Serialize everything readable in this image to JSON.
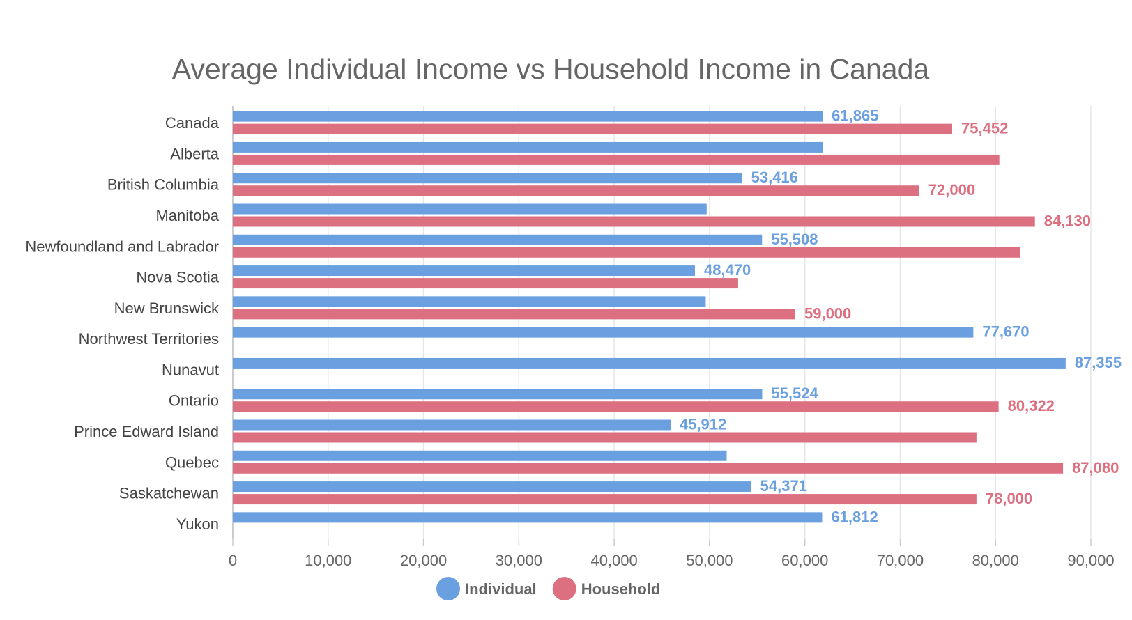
{
  "chart_data": {
    "type": "bar",
    "orientation": "horizontal",
    "title": "Average Individual Income vs Household Income in Canada",
    "categories": [
      "Canada",
      "Alberta",
      "British Columbia",
      "Manitoba",
      "Newfoundland and Labrador",
      "Nova Scotia",
      "New Brunswick",
      "Northwest Territories",
      "Nunavut",
      "Ontario",
      "Prince Edward Island",
      "Quebec",
      "Saskatchewan",
      "Yukon"
    ],
    "series": [
      {
        "name": "Individual",
        "color": "#6a9fe0",
        "values": [
          61865,
          61900,
          53416,
          49700,
          55508,
          48470,
          49600,
          77670,
          87355,
          55524,
          45912,
          51800,
          54371,
          61812
        ],
        "labels": [
          "61,865",
          "",
          "53,416",
          "",
          "55,508",
          "48,470",
          "",
          "77,670",
          "87,355",
          "55,524",
          "45,912",
          "",
          "54,371",
          "61,812"
        ]
      },
      {
        "name": "Household",
        "color": "#dc7080",
        "values": [
          75452,
          80400,
          72000,
          84130,
          82600,
          53000,
          59000,
          null,
          null,
          80322,
          78000,
          87080,
          78000,
          null
        ],
        "labels": [
          "75,452",
          "",
          "72,000",
          "84,130",
          "",
          "",
          "59,000",
          "",
          "",
          "80,322",
          "",
          "87,080",
          "78,000",
          ""
        ]
      }
    ],
    "xlim": [
      0,
      90000
    ],
    "xticks": [
      "0",
      "10,000",
      "20,000",
      "30,000",
      "40,000",
      "50,000",
      "60,000",
      "70,000",
      "80,000",
      "90,000"
    ],
    "grid": true,
    "legend": "bottom-center"
  }
}
